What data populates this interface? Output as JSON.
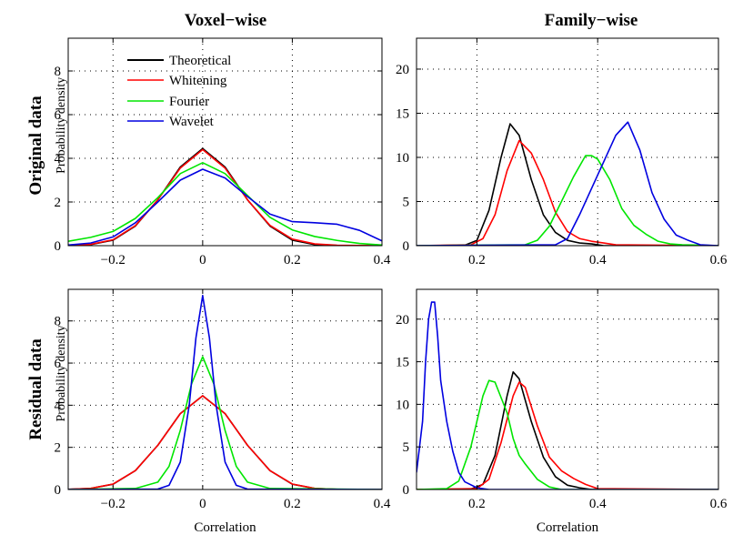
{
  "column_titles": [
    "Voxel−wise",
    "Family−wise"
  ],
  "row_titles": [
    "Original data",
    "Residual data"
  ],
  "colors": {
    "Theoretical": "#000000",
    "Whitening": "#ff0000",
    "Fourier": "#00e600",
    "Wavelet": "#0000e0"
  },
  "legend": {
    "placement": "top-left",
    "entries": [
      "Theoretical",
      "Whitening",
      "Fourier",
      "Wavelet"
    ]
  },
  "chart_data": [
    {
      "type": "line",
      "panel": "top-left",
      "xlim": [
        -0.3,
        0.4
      ],
      "ylim": [
        0,
        9.5
      ],
      "xticks": [
        -0.2,
        0,
        0.2,
        0.4
      ],
      "xtick_labels": [
        "−0.2",
        "0",
        "0.2",
        "0.4"
      ],
      "yticks": [
        0,
        2,
        4,
        6,
        8
      ],
      "ytick_labels": [
        "0",
        "2",
        "4",
        "6",
        "8"
      ],
      "xlabel": "",
      "ylabel": "Probability density",
      "grid": true,
      "series": [
        {
          "name": "Theoretical",
          "x": [
            -0.3,
            -0.25,
            -0.2,
            -0.15,
            -0.1,
            -0.05,
            0,
            0.05,
            0.1,
            0.15,
            0.2,
            0.25,
            0.3,
            0.35,
            0.4
          ],
          "y": [
            0.01,
            0.05,
            0.25,
            0.9,
            2.1,
            3.6,
            4.45,
            3.6,
            2.1,
            0.9,
            0.25,
            0.05,
            0.01,
            0,
            0
          ]
        },
        {
          "name": "Whitening",
          "x": [
            -0.3,
            -0.25,
            -0.2,
            -0.15,
            -0.1,
            -0.05,
            0,
            0.05,
            0.1,
            0.15,
            0.2,
            0.25,
            0.3,
            0.35,
            0.4
          ],
          "y": [
            0.01,
            0.06,
            0.27,
            0.92,
            2.1,
            3.55,
            4.4,
            3.55,
            2.1,
            0.93,
            0.3,
            0.08,
            0.02,
            0.01,
            0
          ]
        },
        {
          "name": "Fourier",
          "x": [
            -0.3,
            -0.25,
            -0.2,
            -0.15,
            -0.1,
            -0.05,
            0,
            0.05,
            0.1,
            0.15,
            0.2,
            0.25,
            0.3,
            0.35,
            0.4
          ],
          "y": [
            0.2,
            0.38,
            0.65,
            1.25,
            2.2,
            3.3,
            3.8,
            3.3,
            2.3,
            1.3,
            0.72,
            0.42,
            0.24,
            0.1,
            0.03
          ]
        },
        {
          "name": "Wavelet",
          "x": [
            -0.3,
            -0.25,
            -0.2,
            -0.15,
            -0.1,
            -0.05,
            0,
            0.05,
            0.1,
            0.15,
            0.2,
            0.25,
            0.3,
            0.35,
            0.4
          ],
          "y": [
            0.03,
            0.12,
            0.4,
            1.05,
            2.0,
            3.0,
            3.5,
            3.1,
            2.25,
            1.45,
            1.1,
            1.05,
            0.98,
            0.7,
            0.22
          ]
        }
      ]
    },
    {
      "type": "line",
      "panel": "top-right",
      "xlim": [
        0.1,
        0.6
      ],
      "ylim": [
        0,
        23.5
      ],
      "xticks": [
        0.2,
        0.4,
        0.6
      ],
      "xtick_labels": [
        "0.2",
        "0.4",
        "0.6"
      ],
      "yticks": [
        0,
        5,
        10,
        15,
        20
      ],
      "ytick_labels": [
        "0",
        "5",
        "10",
        "15",
        "20"
      ],
      "xlabel": "",
      "ylabel": "",
      "grid": true,
      "series": [
        {
          "name": "Theoretical",
          "x": [
            0.1,
            0.18,
            0.2,
            0.22,
            0.24,
            0.255,
            0.27,
            0.29,
            0.31,
            0.33,
            0.35,
            0.37,
            0.39,
            0.41,
            0.6
          ],
          "y": [
            0,
            0.05,
            0.6,
            4,
            10,
            13.8,
            12.5,
            7.5,
            3.5,
            1.5,
            0.6,
            0.3,
            0.2,
            0,
            0
          ]
        },
        {
          "name": "Whitening",
          "x": [
            0.1,
            0.19,
            0.21,
            0.23,
            0.25,
            0.27,
            0.29,
            0.31,
            0.33,
            0.35,
            0.37,
            0.39,
            0.41,
            0.43,
            0.6
          ],
          "y": [
            0,
            0.1,
            0.8,
            3.5,
            8.5,
            11.9,
            10.5,
            7.5,
            3.8,
            1.6,
            0.8,
            0.5,
            0.3,
            0.1,
            0
          ]
        },
        {
          "name": "Fourier",
          "x": [
            0.1,
            0.28,
            0.3,
            0.32,
            0.34,
            0.36,
            0.38,
            0.39,
            0.4,
            0.42,
            0.44,
            0.46,
            0.48,
            0.5,
            0.52,
            0.54,
            0.6
          ],
          "y": [
            0,
            0.1,
            0.6,
            2.2,
            5,
            7.8,
            10.2,
            10.2,
            9.8,
            7.5,
            4.2,
            2.3,
            1.3,
            0.5,
            0.2,
            0.1,
            0
          ]
        },
        {
          "name": "Wavelet",
          "x": [
            0.1,
            0.33,
            0.35,
            0.37,
            0.39,
            0.41,
            0.43,
            0.45,
            0.47,
            0.49,
            0.51,
            0.53,
            0.55,
            0.57,
            0.6
          ],
          "y": [
            0,
            0.1,
            0.8,
            3.5,
            6.5,
            9.5,
            12.5,
            14,
            10.8,
            6,
            3,
            1.2,
            0.6,
            0.1,
            0
          ]
        }
      ]
    },
    {
      "type": "line",
      "panel": "bottom-left",
      "xlim": [
        -0.3,
        0.4
      ],
      "ylim": [
        0,
        9.5
      ],
      "xticks": [
        -0.2,
        0,
        0.2,
        0.4
      ],
      "xtick_labels": [
        "−0.2",
        "0",
        "0.2",
        "0.4"
      ],
      "yticks": [
        0,
        2,
        4,
        6,
        8
      ],
      "ytick_labels": [
        "0",
        "2",
        "4",
        "6",
        "8"
      ],
      "xlabel": "Correlation",
      "ylabel": "Probability density",
      "grid": true,
      "series": [
        {
          "name": "Theoretical",
          "x": [
            -0.3,
            -0.25,
            -0.2,
            -0.15,
            -0.1,
            -0.05,
            0,
            0.05,
            0.1,
            0.15,
            0.2,
            0.25,
            0.3,
            0.35,
            0.4
          ],
          "y": [
            0.01,
            0.05,
            0.25,
            0.9,
            2.1,
            3.6,
            4.45,
            3.6,
            2.1,
            0.9,
            0.25,
            0.05,
            0.01,
            0,
            0
          ]
        },
        {
          "name": "Whitening",
          "x": [
            -0.3,
            -0.25,
            -0.2,
            -0.15,
            -0.1,
            -0.05,
            0,
            0.05,
            0.1,
            0.15,
            0.2,
            0.25,
            0.3,
            0.35,
            0.4
          ],
          "y": [
            0.01,
            0.05,
            0.26,
            0.9,
            2.1,
            3.6,
            4.45,
            3.6,
            2.1,
            0.9,
            0.26,
            0.05,
            0.01,
            0,
            0
          ]
        },
        {
          "name": "Fourier",
          "x": [
            -0.3,
            -0.15,
            -0.1,
            -0.075,
            -0.05,
            -0.025,
            0,
            0.025,
            0.05,
            0.075,
            0.1,
            0.15,
            0.4
          ],
          "y": [
            0,
            0.05,
            0.35,
            1.1,
            2.8,
            5,
            6.3,
            5,
            2.8,
            1.1,
            0.35,
            0.05,
            0
          ]
        },
        {
          "name": "Wavelet",
          "x": [
            -0.3,
            -0.1,
            -0.075,
            -0.05,
            -0.03,
            -0.015,
            0,
            0.015,
            0.03,
            0.05,
            0.075,
            0.1,
            0.4
          ],
          "y": [
            0,
            0.02,
            0.2,
            1.3,
            4,
            7.2,
            9.2,
            7.2,
            4,
            1.3,
            0.2,
            0.02,
            0
          ]
        }
      ]
    },
    {
      "type": "line",
      "panel": "bottom-right",
      "xlim": [
        0.1,
        0.6
      ],
      "ylim": [
        0,
        23.5
      ],
      "xticks": [
        0.2,
        0.4,
        0.6
      ],
      "xtick_labels": [
        "0.2",
        "0.4",
        "0.6"
      ],
      "yticks": [
        0,
        5,
        10,
        15,
        20
      ],
      "ytick_labels": [
        "0",
        "5",
        "10",
        "15",
        "20"
      ],
      "xlabel": "Correlation",
      "ylabel": "",
      "grid": true,
      "series": [
        {
          "name": "Theoretical",
          "x": [
            0.1,
            0.19,
            0.21,
            0.23,
            0.25,
            0.26,
            0.27,
            0.29,
            0.31,
            0.33,
            0.35,
            0.37,
            0.39,
            0.6
          ],
          "y": [
            0,
            0.05,
            0.6,
            4,
            11,
            13.8,
            13,
            8,
            3.8,
            1.5,
            0.5,
            0.2,
            0,
            0
          ]
        },
        {
          "name": "Whitening",
          "x": [
            0.1,
            0.2,
            0.22,
            0.24,
            0.26,
            0.27,
            0.28,
            0.3,
            0.32,
            0.34,
            0.36,
            0.38,
            0.4,
            0.6
          ],
          "y": [
            0,
            0.1,
            1.2,
            5.5,
            11,
            12.6,
            12,
            7.5,
            3.8,
            2.2,
            1.3,
            0.6,
            0.1,
            0
          ]
        },
        {
          "name": "Fourier",
          "x": [
            0.1,
            0.15,
            0.17,
            0.19,
            0.21,
            0.22,
            0.23,
            0.25,
            0.26,
            0.27,
            0.28,
            0.3,
            0.32,
            0.34,
            0.6
          ],
          "y": [
            0,
            0.1,
            1,
            5,
            11,
            12.8,
            12.6,
            9,
            6,
            4,
            3,
            1.2,
            0.3,
            0,
            0
          ]
        },
        {
          "name": "Wavelet",
          "x": [
            0.1,
            0.11,
            0.115,
            0.12,
            0.125,
            0.13,
            0.135,
            0.14,
            0.15,
            0.16,
            0.17,
            0.18,
            0.2,
            0.22,
            0.6
          ],
          "y": [
            2,
            8,
            15,
            20,
            22,
            22,
            18,
            12.8,
            8,
            4.5,
            2,
            0.9,
            0.2,
            0,
            0
          ]
        }
      ]
    }
  ]
}
